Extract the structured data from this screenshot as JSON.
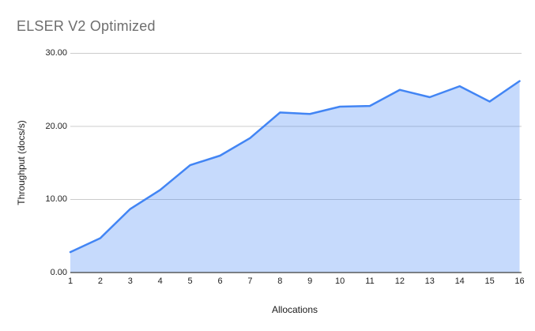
{
  "chart_data": {
    "type": "area",
    "title": "ELSER V2 Optimized",
    "xlabel": "Allocations",
    "ylabel": "Throughput (docs/s)",
    "x": [
      1,
      2,
      3,
      4,
      5,
      6,
      7,
      8,
      9,
      10,
      11,
      12,
      13,
      14,
      15,
      16
    ],
    "values": [
      2.8,
      4.7,
      8.7,
      11.3,
      14.7,
      16.0,
      18.4,
      21.9,
      21.7,
      22.7,
      22.8,
      25.0,
      24.0,
      25.5,
      23.4,
      26.2
    ],
    "ylim": [
      0,
      30
    ],
    "yticks": [
      0,
      10,
      20,
      30
    ],
    "ytick_labels": [
      "0.00",
      "10.00",
      "20.00",
      "30.00"
    ],
    "xtick_labels": [
      "1",
      "2",
      "3",
      "4",
      "5",
      "6",
      "7",
      "8",
      "9",
      "10",
      "11",
      "12",
      "13",
      "14",
      "15",
      "16"
    ],
    "grid": true,
    "legend": "none",
    "colors": {
      "line": "#4285f4",
      "fill": "rgba(66,133,244,0.30)",
      "gridline": "#cccccc",
      "axis_line": "#3d3d3d",
      "title_text": "#6e6e6e",
      "tick_text": "#222222"
    }
  }
}
